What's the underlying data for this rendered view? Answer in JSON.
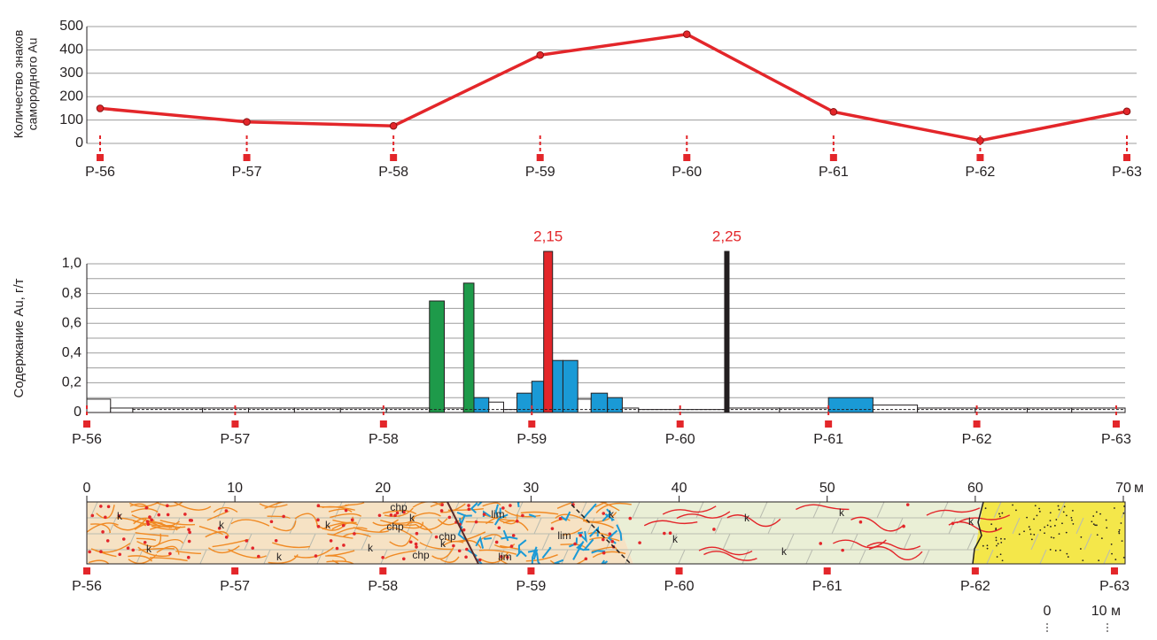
{
  "chart_data": [
    {
      "type": "line",
      "ylabel": [
        "Количество знаков",
        "самородного Au"
      ],
      "categories": [
        "P-56",
        "P-57",
        "P-58",
        "P-59",
        "P-60",
        "P-61",
        "P-62",
        "P-63"
      ],
      "values": [
        150,
        92,
        75,
        378,
        467,
        135,
        12,
        137
      ],
      "color": "#e3262a",
      "ylim": [
        0,
        500
      ],
      "yticks": [
        0,
        100,
        200,
        300,
        400,
        500
      ],
      "grid": true
    },
    {
      "type": "bar",
      "ylabel": "Содержание Au, г/т",
      "xlim": [
        0,
        70
      ],
      "bar_start": [
        0,
        1.6,
        3.1,
        7.8,
        10.9,
        14.0,
        17.1,
        20.2,
        23.1,
        24.1,
        25.4,
        26.1,
        27.1,
        28.1,
        29.0,
        30.0,
        30.8,
        31.4,
        32.1,
        33.1,
        34.0,
        35.1,
        36.1,
        37.2,
        43.0,
        43.3,
        46.7,
        50.0,
        53.0,
        56.0,
        59.9,
        63.4,
        66.4
      ],
      "bar_end": [
        1.6,
        3.1,
        7.8,
        10.9,
        14.0,
        17.1,
        20.2,
        23.1,
        24.1,
        25.4,
        26.1,
        27.1,
        28.1,
        29.0,
        30.0,
        30.8,
        31.4,
        32.1,
        33.1,
        34.0,
        35.1,
        36.1,
        37.2,
        43.0,
        43.3,
        46.7,
        50.0,
        53.0,
        56.0,
        59.9,
        63.4,
        66.4,
        70.0
      ],
      "values": [
        0.09,
        0.03,
        0.03,
        0.03,
        0.03,
        0.03,
        0.03,
        0.03,
        0.75,
        0.03,
        0.87,
        0.1,
        0.07,
        0.02,
        0.13,
        0.21,
        2.15,
        0.35,
        0.35,
        0.09,
        0.13,
        0.1,
        0.03,
        0.02,
        2.25,
        0.03,
        0.03,
        0.1,
        0.05,
        0.03,
        0.03,
        0.03,
        0.03
      ],
      "value_labels": [
        null,
        null,
        null,
        null,
        null,
        null,
        null,
        null,
        null,
        null,
        null,
        null,
        null,
        null,
        null,
        null,
        "2,15",
        null,
        null,
        null,
        null,
        null,
        null,
        null,
        "2,25",
        null,
        null,
        null,
        null,
        null,
        null,
        null,
        null
      ],
      "colors": [
        "#ffffff",
        "#ffffff",
        "#ffffff",
        "#ffffff",
        "#ffffff",
        "#ffffff",
        "#ffffff",
        "#ffffff",
        "#1e9a4a",
        "#ffffff",
        "#1e9a4a",
        "#1a9ad6",
        "#ffffff",
        "#ffffff",
        "#1a9ad6",
        "#1a9ad6",
        "#e3262a",
        "#1a9ad6",
        "#1a9ad6",
        "#ffffff",
        "#1a9ad6",
        "#1a9ad6",
        "#ffffff",
        "#ffffff",
        "#231f20",
        "#ffffff",
        "#ffffff",
        "#1a9ad6",
        "#ffffff",
        "#ffffff",
        "#ffffff",
        "#ffffff",
        "#ffffff"
      ],
      "ylim": [
        0,
        1.0
      ],
      "yticks": [
        0,
        {
          "value": 0.2,
          "label": "0,2"
        },
        {
          "value": 0.4,
          "label": "0,4"
        },
        {
          "value": 0.6,
          "label": "0,6"
        },
        {
          "value": 0.8,
          "label": "0,8"
        },
        {
          "value": 1.0,
          "label": "1,0"
        }
      ],
      "minor_yticks": [
        0.1,
        0.3,
        0.5,
        0.7,
        0.9
      ],
      "reference_line": 0.02,
      "grid": true,
      "stations": [
        "P-56",
        "P-57",
        "P-58",
        "P-59",
        "P-60",
        "P-61",
        "P-62",
        "P-63"
      ],
      "station_x": [
        0,
        10,
        20,
        30,
        40,
        50,
        60,
        69.4
      ]
    },
    {
      "type": "section",
      "xlim": [
        0,
        70
      ],
      "xticks": [
        0,
        10,
        20,
        30,
        40,
        50,
        60,
        70
      ],
      "x_unit": "м",
      "stations": [
        "P-56",
        "P-57",
        "P-58",
        "P-59",
        "P-60",
        "P-61",
        "P-62",
        "P-63"
      ],
      "station_x": [
        0,
        10,
        20,
        30,
        40,
        50,
        60,
        69.4
      ],
      "labels": [
        "k",
        "chp",
        "lim"
      ],
      "scale_bar": [
        "0",
        "10 м"
      ]
    }
  ]
}
